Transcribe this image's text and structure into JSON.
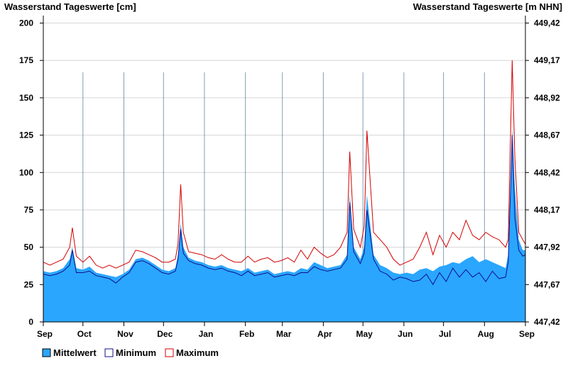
{
  "chart_data": {
    "type": "area",
    "title_left": "Wasserstand Tageswerte [cm]",
    "title_right": "Wasserstand Tageswerte [m NHN]",
    "ylim": [
      0,
      205
    ],
    "y_ticks": [
      0,
      25,
      50,
      75,
      100,
      125,
      150,
      175,
      200
    ],
    "y2_ticks": [
      "447,42",
      "447,67",
      "447,92",
      "448,17",
      "448,42",
      "448,67",
      "448,92",
      "449,17",
      "449,42"
    ],
    "x_month_labels": [
      "Sep",
      "Oct",
      "Nov",
      "Dec",
      "Jan",
      "Feb",
      "Mar",
      "Apr",
      "May",
      "Jun",
      "Jul",
      "Aug",
      "Sep"
    ],
    "x_days_total": 365,
    "grid": true,
    "legend_position": "bottom-left",
    "colors": {
      "mittel": "#2aa6ff",
      "minimum": "#10108c",
      "maximum": "#d40000",
      "grid": "#d6d6d6"
    },
    "series": [
      {
        "name": "Mittelwert",
        "key": "mittel",
        "x": [
          0,
          5,
          10,
          15,
          20,
          22,
          25,
          30,
          35,
          40,
          45,
          50,
          55,
          60,
          65,
          70,
          75,
          80,
          85,
          90,
          95,
          100,
          102,
          104,
          106,
          110,
          115,
          120,
          125,
          130,
          135,
          140,
          145,
          150,
          155,
          160,
          165,
          170,
          175,
          180,
          185,
          190,
          195,
          200,
          205,
          210,
          215,
          220,
          225,
          230,
          232,
          235,
          240,
          243,
          245,
          250,
          255,
          260,
          265,
          270,
          275,
          280,
          285,
          290,
          295,
          300,
          305,
          310,
          315,
          320,
          325,
          330,
          335,
          340,
          345,
          350,
          352,
          355,
          357,
          360,
          363,
          365
        ],
        "values": [
          34,
          33,
          34,
          36,
          42,
          50,
          36,
          35,
          37,
          33,
          32,
          31,
          30,
          32,
          35,
          42,
          43,
          41,
          38,
          35,
          34,
          36,
          45,
          66,
          50,
          43,
          41,
          40,
          38,
          37,
          38,
          36,
          35,
          34,
          36,
          33,
          34,
          35,
          32,
          33,
          34,
          33,
          36,
          35,
          40,
          38,
          36,
          37,
          38,
          45,
          85,
          50,
          42,
          50,
          85,
          45,
          38,
          36,
          33,
          32,
          33,
          32,
          35,
          36,
          34,
          37,
          38,
          40,
          39,
          42,
          44,
          40,
          42,
          40,
          38,
          36,
          45,
          130,
          90,
          55,
          48,
          48
        ]
      },
      {
        "name": "Minimum",
        "key": "minimum",
        "x": [
          0,
          5,
          10,
          15,
          20,
          22,
          25,
          30,
          35,
          40,
          45,
          50,
          55,
          60,
          65,
          70,
          75,
          80,
          85,
          90,
          95,
          100,
          102,
          104,
          106,
          110,
          115,
          120,
          125,
          130,
          135,
          140,
          145,
          150,
          155,
          160,
          165,
          170,
          175,
          180,
          185,
          190,
          195,
          200,
          205,
          210,
          215,
          220,
          225,
          230,
          232,
          235,
          240,
          243,
          245,
          250,
          255,
          260,
          265,
          270,
          275,
          280,
          285,
          290,
          295,
          300,
          305,
          310,
          315,
          320,
          325,
          330,
          335,
          340,
          345,
          350,
          352,
          355,
          357,
          360,
          363,
          365
        ],
        "values": [
          32,
          31,
          32,
          34,
          38,
          48,
          33,
          33,
          34,
          31,
          30,
          29,
          26,
          30,
          33,
          40,
          41,
          39,
          36,
          33,
          32,
          34,
          42,
          62,
          46,
          41,
          39,
          38,
          36,
          35,
          36,
          34,
          33,
          31,
          34,
          31,
          32,
          33,
          30,
          31,
          32,
          31,
          33,
          33,
          37,
          35,
          34,
          35,
          36,
          42,
          80,
          47,
          39,
          46,
          75,
          42,
          34,
          32,
          28,
          30,
          29,
          27,
          28,
          32,
          25,
          33,
          27,
          36,
          30,
          35,
          30,
          33,
          27,
          34,
          29,
          30,
          40,
          125,
          70,
          48,
          44,
          45
        ]
      },
      {
        "name": "Maximum",
        "key": "maximum",
        "x": [
          0,
          5,
          10,
          15,
          20,
          22,
          25,
          30,
          35,
          40,
          45,
          50,
          55,
          60,
          65,
          70,
          75,
          80,
          85,
          90,
          95,
          100,
          102,
          104,
          106,
          110,
          115,
          120,
          125,
          130,
          135,
          140,
          145,
          150,
          155,
          160,
          165,
          170,
          175,
          180,
          185,
          190,
          195,
          200,
          205,
          210,
          215,
          220,
          225,
          230,
          232,
          235,
          240,
          243,
          245,
          250,
          255,
          260,
          265,
          270,
          275,
          280,
          285,
          290,
          295,
          300,
          305,
          310,
          315,
          320,
          325,
          330,
          335,
          340,
          345,
          350,
          352,
          355,
          357,
          360,
          363,
          365
        ],
        "values": [
          40,
          38,
          40,
          42,
          50,
          63,
          44,
          40,
          44,
          38,
          36,
          38,
          36,
          38,
          40,
          48,
          47,
          45,
          43,
          40,
          40,
          42,
          52,
          92,
          60,
          47,
          46,
          45,
          43,
          42,
          45,
          42,
          40,
          40,
          44,
          40,
          42,
          43,
          40,
          41,
          43,
          40,
          48,
          42,
          50,
          46,
          43,
          45,
          50,
          60,
          114,
          62,
          50,
          64,
          128,
          60,
          55,
          50,
          42,
          38,
          40,
          42,
          50,
          60,
          45,
          58,
          50,
          60,
          55,
          68,
          58,
          55,
          60,
          57,
          55,
          50,
          55,
          175,
          110,
          60,
          55,
          52
        ]
      }
    ]
  },
  "legend": [
    {
      "key": "mittel",
      "label": "Mittelwert"
    },
    {
      "key": "minimum",
      "label": "Minimum"
    },
    {
      "key": "maximum",
      "label": "Maximum"
    }
  ]
}
